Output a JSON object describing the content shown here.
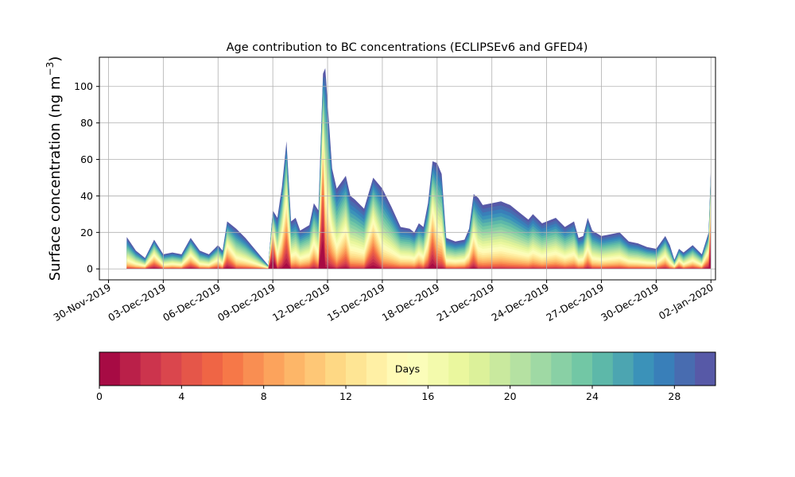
{
  "chart_data": {
    "type": "area",
    "title": "Age contribution to BC concentrations (ECLIPSEv6 and GFED4)",
    "ylabel": "Surface concentration (ng m",
    "ylabel_sup": "−3",
    "ylabel_close": ")",
    "xlabel": "",
    "ylim": [
      -6,
      116
    ],
    "yticks": [
      0,
      20,
      40,
      60,
      80,
      100
    ],
    "xlim": [
      "2019-11-29T12:00",
      "2020-01-02T06:00"
    ],
    "xticks": [
      "30-Nov-2019",
      "03-Dec-2019",
      "06-Dec-2019",
      "09-Dec-2019",
      "12-Dec-2019",
      "15-Dec-2019",
      "18-Dec-2019",
      "21-Dec-2019",
      "24-Dec-2019",
      "27-Dec-2019",
      "30-Dec-2019",
      "02-Jan-2020"
    ],
    "grid": true,
    "stacked_layers": 30,
    "colormap": "Spectral",
    "total": [
      [
        "2019-12-01T00:00",
        17.5
      ],
      [
        "2019-12-01T12:00",
        10
      ],
      [
        "2019-12-02T00:00",
        6
      ],
      [
        "2019-12-02T12:00",
        16
      ],
      [
        "2019-12-03T00:00",
        8
      ],
      [
        "2019-12-03T12:00",
        9
      ],
      [
        "2019-12-04T00:00",
        8
      ],
      [
        "2019-12-04T12:00",
        17
      ],
      [
        "2019-12-05T00:00",
        10
      ],
      [
        "2019-12-05T12:00",
        8
      ],
      [
        "2019-12-06T00:00",
        13
      ],
      [
        "2019-12-06T06:00",
        10
      ],
      [
        "2019-12-06T12:00",
        26
      ],
      [
        "2019-12-07T00:00",
        22
      ],
      [
        "2019-12-07T12:00",
        17
      ],
      [
        "2019-12-08T00:00",
        11
      ],
      [
        "2019-12-08T12:00",
        5
      ],
      [
        "2019-12-08T18:00",
        2
      ],
      [
        "2019-12-09T00:00",
        32
      ],
      [
        "2019-12-09T06:00",
        28
      ],
      [
        "2019-12-09T12:00",
        45
      ],
      [
        "2019-12-09T18:00",
        70
      ],
      [
        "2019-12-10T00:00",
        26
      ],
      [
        "2019-12-10T06:00",
        28
      ],
      [
        "2019-12-10T12:00",
        21
      ],
      [
        "2019-12-11T00:00",
        24
      ],
      [
        "2019-12-11T06:00",
        36
      ],
      [
        "2019-12-11T12:00",
        32
      ],
      [
        "2019-12-11T18:00",
        107
      ],
      [
        "2019-12-11T21:00",
        110
      ],
      [
        "2019-12-12T06:00",
        55
      ],
      [
        "2019-12-12T12:00",
        44
      ],
      [
        "2019-12-13T00:00",
        51
      ],
      [
        "2019-12-13T06:00",
        40
      ],
      [
        "2019-12-13T12:00",
        38
      ],
      [
        "2019-12-14T00:00",
        33
      ],
      [
        "2019-12-14T12:00",
        50
      ],
      [
        "2019-12-15T00:00",
        44
      ],
      [
        "2019-12-15T12:00",
        34
      ],
      [
        "2019-12-16T00:00",
        23
      ],
      [
        "2019-12-16T12:00",
        22
      ],
      [
        "2019-12-16T18:00",
        20
      ],
      [
        "2019-12-17T00:00",
        25
      ],
      [
        "2019-12-17T06:00",
        23
      ],
      [
        "2019-12-17T12:00",
        36
      ],
      [
        "2019-12-17T18:00",
        59
      ],
      [
        "2019-12-18T00:00",
        58
      ],
      [
        "2019-12-18T06:00",
        52
      ],
      [
        "2019-12-18T12:00",
        17
      ],
      [
        "2019-12-19T00:00",
        15
      ],
      [
        "2019-12-19T12:00",
        16
      ],
      [
        "2019-12-19T18:00",
        22
      ],
      [
        "2019-12-20T00:00",
        41
      ],
      [
        "2019-12-20T06:00",
        39
      ],
      [
        "2019-12-20T12:00",
        35
      ],
      [
        "2019-12-21T12:00",
        37
      ],
      [
        "2019-12-22T00:00",
        35
      ],
      [
        "2019-12-22T12:00",
        31
      ],
      [
        "2019-12-23T00:00",
        27
      ],
      [
        "2019-12-23T06:00",
        30
      ],
      [
        "2019-12-23T18:00",
        25
      ],
      [
        "2019-12-24T12:00",
        28
      ],
      [
        "2019-12-25T00:00",
        23
      ],
      [
        "2019-12-25T12:00",
        26
      ],
      [
        "2019-12-25T18:00",
        17
      ],
      [
        "2019-12-26T00:00",
        18
      ],
      [
        "2019-12-26T06:00",
        28
      ],
      [
        "2019-12-26T12:00",
        21
      ],
      [
        "2019-12-27T00:00",
        18
      ],
      [
        "2019-12-28T00:00",
        20
      ],
      [
        "2019-12-28T12:00",
        15
      ],
      [
        "2019-12-29T00:00",
        14
      ],
      [
        "2019-12-29T12:00",
        12
      ],
      [
        "2019-12-30T00:00",
        11
      ],
      [
        "2019-12-30T12:00",
        18
      ],
      [
        "2019-12-30T18:00",
        13
      ],
      [
        "2019-12-31T00:00",
        5
      ],
      [
        "2019-12-31T06:00",
        11
      ],
      [
        "2019-12-31T12:00",
        9
      ],
      [
        "2020-01-01T00:00",
        13
      ],
      [
        "2020-01-01T12:00",
        8
      ],
      [
        "2020-01-01T21:00",
        20
      ],
      [
        "2020-01-02T00:00",
        56
      ]
    ],
    "colorbar": {
      "label": "Days",
      "range": [
        0,
        30
      ],
      "ticks": [
        0,
        4,
        8,
        12,
        16,
        20,
        24,
        28
      ]
    }
  }
}
